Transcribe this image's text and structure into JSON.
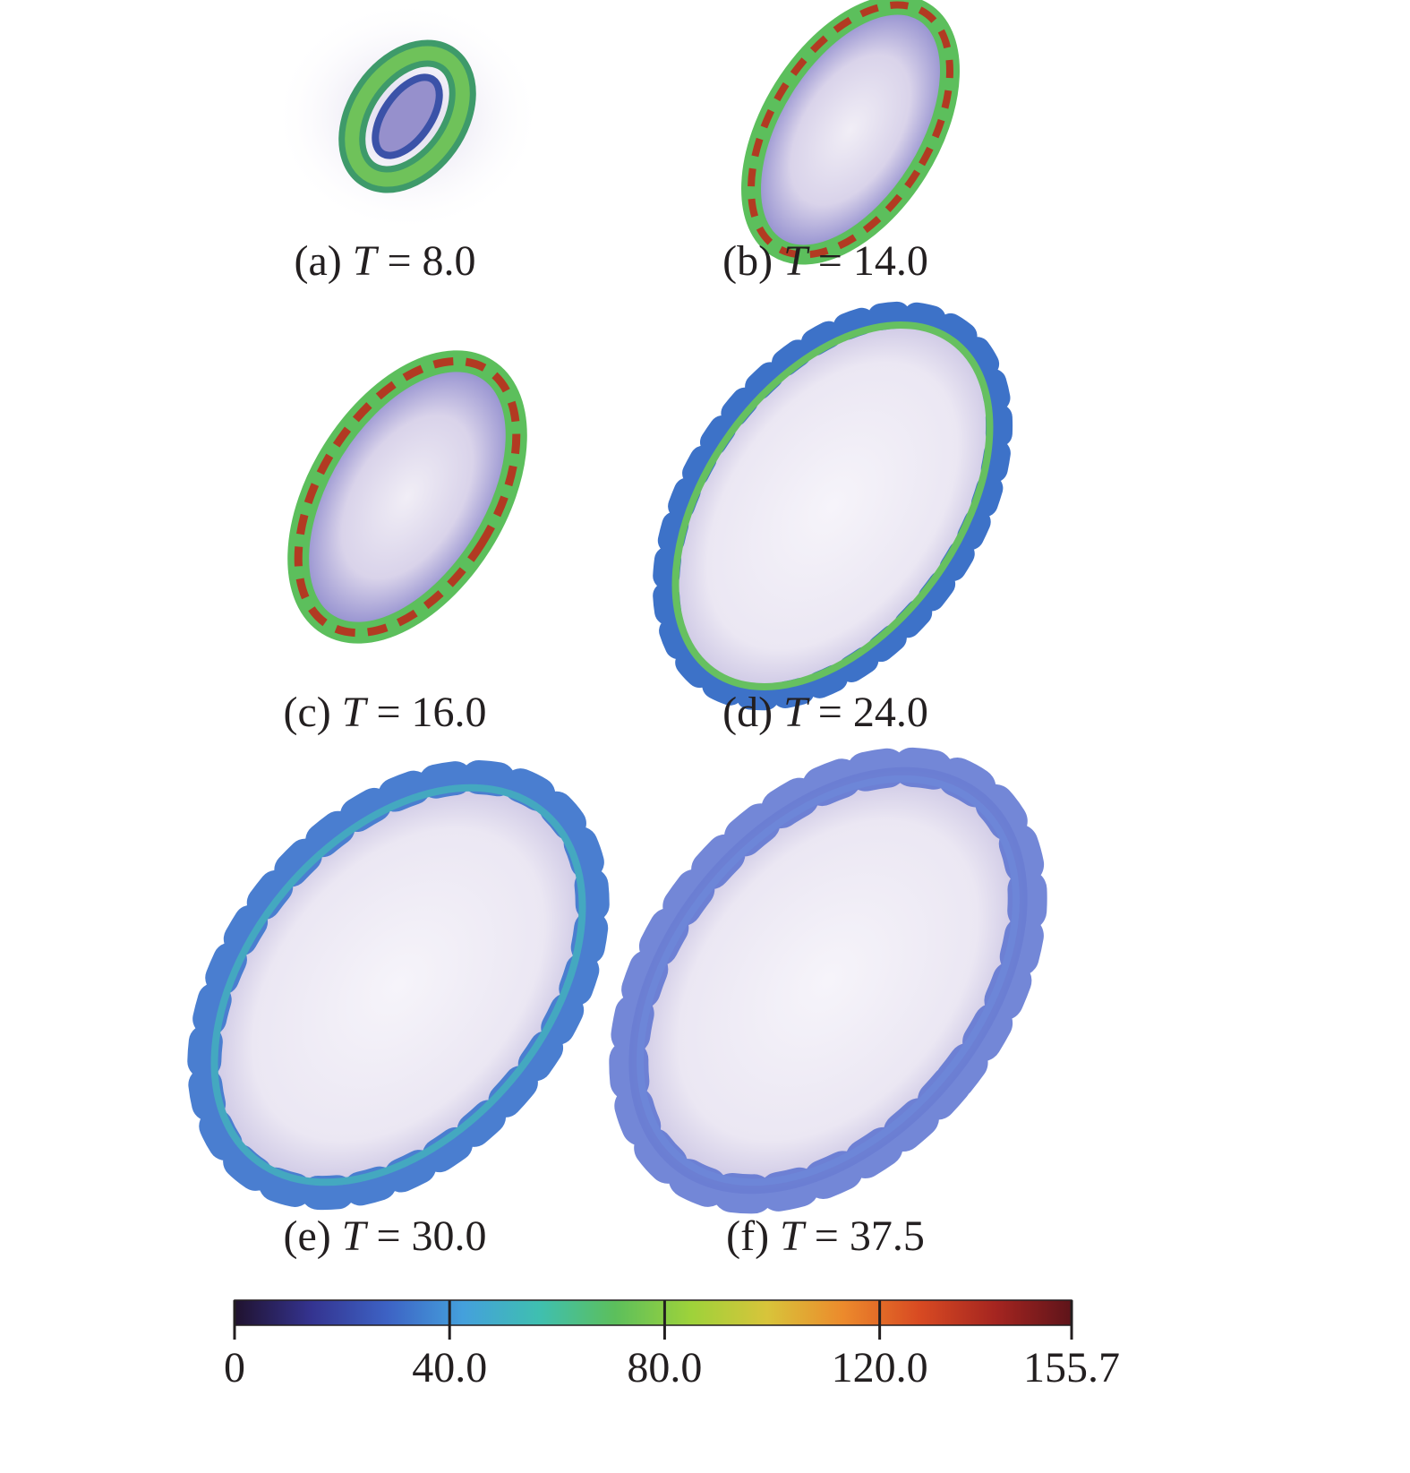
{
  "panels": [
    {
      "tag": "(a)",
      "var": "T",
      "value": "= 8.0"
    },
    {
      "tag": "(b)",
      "var": "T",
      "value": "= 14.0"
    },
    {
      "tag": "(c)",
      "var": "T",
      "value": "= 16.0"
    },
    {
      "tag": "(d)",
      "var": "T",
      "value": "= 24.0"
    },
    {
      "tag": "(e)",
      "var": "T",
      "value": "= 30.0"
    },
    {
      "tag": "(f)",
      "var": "T",
      "value": "= 37.5"
    }
  ],
  "colorbar": {
    "range": [
      0,
      155.7
    ],
    "ticks": [
      0,
      {
        "value": 40,
        "label": "40.0"
      },
      {
        "value": 80,
        "label": "80.0"
      },
      {
        "value": 120,
        "label": "120.0"
      },
      155.7
    ],
    "colors": [
      "#20122e",
      "#34338f",
      "#3d62c4",
      "#44a0dc",
      "#3fbfb0",
      "#5cbf5c",
      "#9ed23a",
      "#d8c43a",
      "#ec8a2c",
      "#d84a22",
      "#a52520",
      "#5e141a"
    ]
  }
}
